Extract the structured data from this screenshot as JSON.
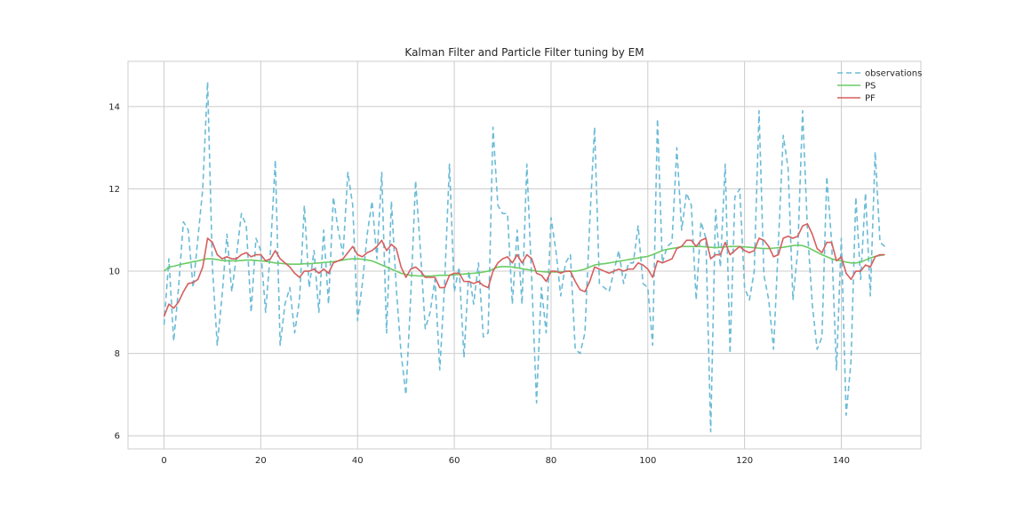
{
  "chart_data": {
    "type": "line",
    "title": "Kalman Filter and Particle Filter tuning by EM",
    "xlabel": "",
    "ylabel": "",
    "xlim": [
      -7.45,
      156.45
    ],
    "ylim": [
      5.68,
      15.1
    ],
    "xticks": [
      0,
      20,
      40,
      60,
      80,
      100,
      120,
      140
    ],
    "yticks": [
      6,
      8,
      10,
      12,
      14
    ],
    "grid": true,
    "legend_position": "top-right",
    "x": [
      0,
      1,
      2,
      3,
      4,
      5,
      6,
      7,
      8,
      9,
      10,
      11,
      12,
      13,
      14,
      15,
      16,
      17,
      18,
      19,
      20,
      21,
      22,
      23,
      24,
      25,
      26,
      27,
      28,
      29,
      30,
      31,
      32,
      33,
      34,
      35,
      36,
      37,
      38,
      39,
      40,
      41,
      42,
      43,
      44,
      45,
      46,
      47,
      48,
      49,
      50,
      51,
      52,
      53,
      54,
      55,
      56,
      57,
      58,
      59,
      60,
      61,
      62,
      63,
      64,
      65,
      66,
      67,
      68,
      69,
      70,
      71,
      72,
      73,
      74,
      75,
      76,
      77,
      78,
      79,
      80,
      81,
      82,
      83,
      84,
      85,
      86,
      87,
      88,
      89,
      90,
      91,
      92,
      93,
      94,
      95,
      96,
      97,
      98,
      99,
      100,
      101,
      102,
      103,
      104,
      105,
      106,
      107,
      108,
      109,
      110,
      111,
      112,
      113,
      114,
      115,
      116,
      117,
      118,
      119,
      120,
      121,
      122,
      123,
      124,
      125,
      126,
      127,
      128,
      129,
      130,
      131,
      132,
      133,
      134,
      135,
      136,
      137,
      138,
      139,
      140,
      141,
      142,
      143,
      144,
      145,
      146,
      147,
      148,
      149
    ],
    "series": [
      {
        "name": "observations",
        "color": "#6bbbd6",
        "dash": "6,4",
        "values": [
          8.7,
          10.3,
          8.3,
          9.6,
          11.2,
          11.0,
          9.6,
          10.8,
          12.0,
          14.6,
          10.1,
          8.2,
          9.4,
          10.9,
          9.5,
          10.4,
          11.4,
          11.1,
          9.0,
          10.8,
          10.5,
          9.0,
          10.5,
          12.7,
          8.2,
          9.2,
          9.6,
          8.5,
          9.3,
          11.6,
          9.6,
          10.5,
          9.0,
          11.0,
          9.2,
          11.8,
          11.0,
          10.4,
          12.4,
          11.6,
          8.8,
          9.7,
          10.9,
          11.7,
          10.3,
          12.4,
          8.5,
          11.7,
          9.6,
          8.0,
          7.0,
          9.4,
          12.2,
          10.5,
          8.6,
          9.0,
          9.8,
          7.6,
          9.7,
          12.6,
          9.5,
          10.1,
          7.9,
          10.0,
          9.2,
          10.2,
          8.4,
          8.5,
          13.5,
          11.6,
          11.4,
          11.4,
          9.2,
          11.0,
          9.2,
          12.6,
          9.8,
          6.8,
          9.6,
          8.5,
          11.3,
          10.5,
          9.4,
          10.2,
          10.4,
          8.1,
          8.0,
          8.5,
          11.2,
          13.5,
          9.7,
          9.6,
          9.5,
          10.0,
          10.5,
          9.7,
          10.2,
          10.2,
          11.1,
          9.7,
          9.6,
          8.2,
          13.7,
          10.2,
          10.6,
          10.7,
          13.0,
          11.0,
          11.9,
          11.6,
          9.3,
          11.2,
          10.8,
          6.1,
          11.5,
          10.1,
          12.6,
          8.0,
          11.8,
          12.0,
          9.6,
          9.3,
          10.0,
          13.9,
          9.9,
          9.3,
          8.1,
          10.7,
          13.3,
          12.5,
          9.3,
          10.5,
          13.9,
          11.0,
          9.2,
          8.1,
          8.4,
          12.3,
          10.7,
          7.6,
          10.8,
          6.5,
          7.8,
          11.8,
          9.8,
          11.9,
          9.4,
          12.9,
          10.7,
          10.6
        ]
      },
      {
        "name": "PS",
        "color": "#6acc64",
        "dash": "",
        "values": [
          10.0,
          10.1,
          10.12,
          10.15,
          10.18,
          10.2,
          10.23,
          10.25,
          10.28,
          10.3,
          10.3,
          10.28,
          10.26,
          10.25,
          10.25,
          10.25,
          10.26,
          10.27,
          10.27,
          10.26,
          10.25,
          10.24,
          10.22,
          10.2,
          10.19,
          10.18,
          10.17,
          10.17,
          10.17,
          10.18,
          10.18,
          10.19,
          10.2,
          10.21,
          10.22,
          10.23,
          10.25,
          10.27,
          10.29,
          10.3,
          10.3,
          10.29,
          10.27,
          10.25,
          10.2,
          10.15,
          10.1,
          10.05,
          10.0,
          9.95,
          9.92,
          9.9,
          9.89,
          9.88,
          9.88,
          9.88,
          9.89,
          9.9,
          9.9,
          9.9,
          9.91,
          9.92,
          9.93,
          9.94,
          9.95,
          9.96,
          9.98,
          10.0,
          10.05,
          10.1,
          10.11,
          10.11,
          10.1,
          10.08,
          10.06,
          10.04,
          10.02,
          10.0,
          9.99,
          9.98,
          9.98,
          9.98,
          9.98,
          9.99,
          10.0,
          10.0,
          10.02,
          10.05,
          10.1,
          10.15,
          10.17,
          10.18,
          10.2,
          10.22,
          10.24,
          10.26,
          10.28,
          10.3,
          10.32,
          10.34,
          10.36,
          10.4,
          10.45,
          10.5,
          10.53,
          10.55,
          10.57,
          10.6,
          10.6,
          10.6,
          10.6,
          10.6,
          10.59,
          10.58,
          10.57,
          10.58,
          10.59,
          10.6,
          10.6,
          10.6,
          10.59,
          10.58,
          10.57,
          10.56,
          10.55,
          10.55,
          10.56,
          10.57,
          10.58,
          10.6,
          10.62,
          10.63,
          10.62,
          10.58,
          10.52,
          10.46,
          10.4,
          10.35,
          10.3,
          10.27,
          10.25,
          10.22,
          10.2,
          10.2,
          10.22,
          10.27,
          10.32,
          10.36,
          10.38,
          10.4
        ]
      },
      {
        "name": "PF",
        "color": "#d65f5f",
        "dash": "",
        "values": [
          8.9,
          9.2,
          9.1,
          9.25,
          9.5,
          9.7,
          9.72,
          9.8,
          10.1,
          10.8,
          10.7,
          10.4,
          10.3,
          10.35,
          10.3,
          10.3,
          10.4,
          10.45,
          10.35,
          10.4,
          10.4,
          10.25,
          10.3,
          10.5,
          10.3,
          10.2,
          10.1,
          9.95,
          9.85,
          10.0,
          10.0,
          10.05,
          9.95,
          10.05,
          9.95,
          10.2,
          10.25,
          10.3,
          10.45,
          10.6,
          10.4,
          10.35,
          10.45,
          10.5,
          10.6,
          10.75,
          10.5,
          10.65,
          10.55,
          10.1,
          9.85,
          10.05,
          10.1,
          10.0,
          9.85,
          9.85,
          9.85,
          9.6,
          9.6,
          9.9,
          9.95,
          9.95,
          9.75,
          9.75,
          9.7,
          9.75,
          9.65,
          9.6,
          10.0,
          10.2,
          10.3,
          10.35,
          10.2,
          10.4,
          10.2,
          10.4,
          10.3,
          9.95,
          9.9,
          9.75,
          10.0,
          10.0,
          9.95,
          10.0,
          10.0,
          9.75,
          9.55,
          9.5,
          9.75,
          10.1,
          10.05,
          10.0,
          9.95,
          10.0,
          10.05,
          10.0,
          10.05,
          10.05,
          10.2,
          10.15,
          10.05,
          9.85,
          10.25,
          10.2,
          10.25,
          10.3,
          10.55,
          10.6,
          10.75,
          10.75,
          10.6,
          10.75,
          10.8,
          10.3,
          10.4,
          10.4,
          10.7,
          10.4,
          10.5,
          10.6,
          10.5,
          10.45,
          10.5,
          10.8,
          10.75,
          10.6,
          10.35,
          10.4,
          10.8,
          10.85,
          10.8,
          10.85,
          11.1,
          11.15,
          10.9,
          10.55,
          10.45,
          10.7,
          10.7,
          10.25,
          10.35,
          9.95,
          9.8,
          10.0,
          10.0,
          10.15,
          10.1,
          10.35,
          10.4,
          10.4
        ]
      }
    ]
  }
}
